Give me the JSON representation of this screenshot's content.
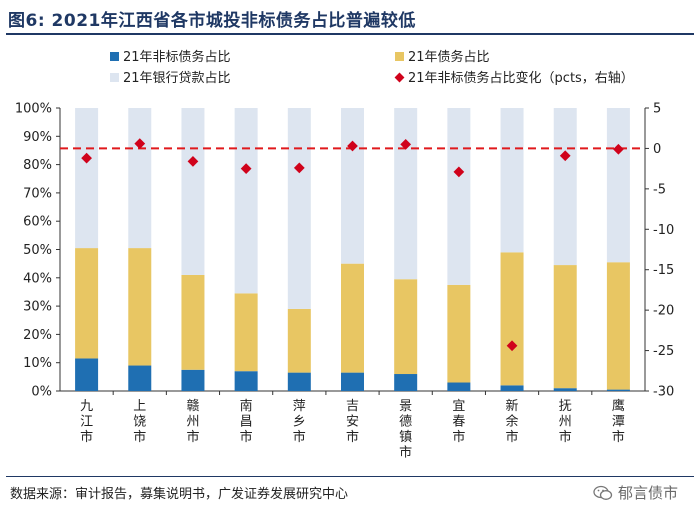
{
  "title": "图6:  2021年江西省各市城投非标债务占比普遍较低",
  "source": "数据来源：审计报告，募集说明书，广发证券发展研究中心",
  "watermark": "郁言债市",
  "watermark_icon": "wechat-icon",
  "chart_data": {
    "type": "bar",
    "stacked": true,
    "percent_stacked": true,
    "categories": [
      "九江市",
      "上饶市",
      "赣州市",
      "南昌市",
      "萍乡市",
      "吉安市",
      "景德镇市",
      "宜春市",
      "新余市",
      "抚州市",
      "鹰潭市"
    ],
    "series": [
      {
        "name": "21年非标债务占比",
        "axis": "left",
        "color": "#1f6fb2",
        "values": [
          11.5,
          9,
          7.5,
          7,
          6.5,
          6.5,
          6,
          3,
          2,
          1,
          0.5
        ]
      },
      {
        "name": "21年债务占比",
        "axis": "left",
        "color": "#e8c663",
        "values": [
          39,
          41.5,
          33.5,
          27.5,
          22.5,
          38.5,
          33.5,
          34.5,
          47,
          43.5,
          45
        ]
      },
      {
        "name": "21年银行贷款占比",
        "axis": "left",
        "color": "#dde5f0",
        "values": [
          49.5,
          49.5,
          59,
          65.5,
          71,
          55,
          60.5,
          62.5,
          51,
          55.5,
          54.5
        ]
      },
      {
        "name": "21年非标债务占比变化（pcts，右轴）",
        "axis": "right",
        "type": "scatter",
        "color": "#d0021b",
        "values": [
          -1.2,
          0.6,
          -1.6,
          -2.5,
          -2.4,
          0.3,
          0.5,
          -2.9,
          -24.4,
          -0.9,
          -0.1
        ]
      }
    ],
    "y_left": {
      "min": 0,
      "max": 100,
      "ticks": [
        "0%",
        "10%",
        "20%",
        "30%",
        "40%",
        "50%",
        "60%",
        "70%",
        "80%",
        "90%",
        "100%"
      ]
    },
    "y_right": {
      "min": -30,
      "max": 5,
      "ticks": [
        "-30",
        "-25",
        "-20",
        "-15",
        "-10",
        "-5",
        "0",
        "5"
      ]
    },
    "reference_line": {
      "axis": "right",
      "value": 0,
      "style": "dashed",
      "color": "#e0191c"
    },
    "grid": false,
    "legend_position": "top"
  }
}
